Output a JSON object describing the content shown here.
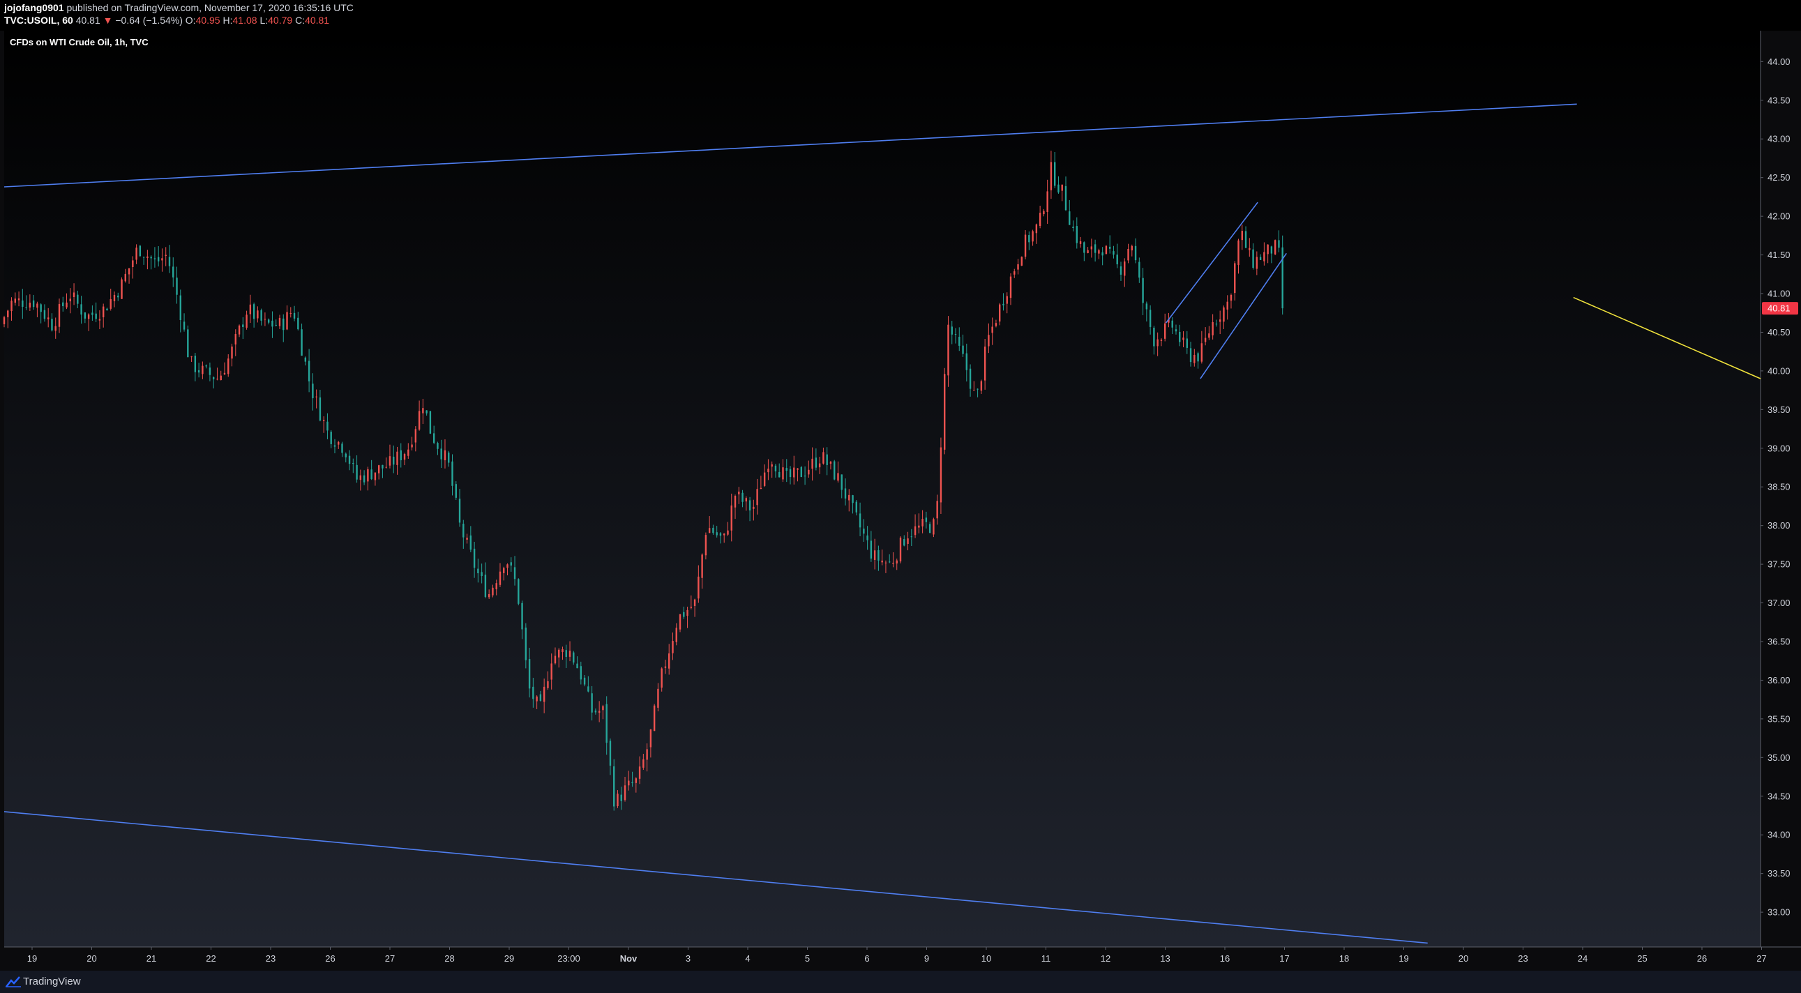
{
  "header": {
    "author": "jojofang0901",
    "published_text": " published on TradingView.com, November 17, 2020 16:35:16 UTC",
    "symbol": "TVC:USOIL, 60",
    "last": "40.81",
    "change_arrow": "▼",
    "change": "−0.64 (−1.54%)",
    "o_label": "O:",
    "o_value": "40.95",
    "h_label": "H:",
    "h_value": "41.08",
    "l_label": "L:",
    "l_value": "40.79",
    "c_label": "C:",
    "c_value": "40.81"
  },
  "footer": {
    "brand": "TradingView"
  },
  "colors": {
    "up": "#ef5350",
    "down": "#26a69a",
    "trendline": "#4f7ef0",
    "projection": "#f0e23c",
    "price_badge": "#f23645",
    "axis_text": "#d1d4dc"
  },
  "chart_data": {
    "type": "candlestick",
    "title": "CFDs on WTI Crude Oil, 1h, TVC",
    "y_ticks": [
      "44.00",
      "43.50",
      "43.00",
      "42.50",
      "42.00",
      "41.50",
      "41.00",
      "40.50",
      "40.00",
      "39.50",
      "39.00",
      "38.50",
      "38.00",
      "37.50",
      "37.00",
      "36.50",
      "36.00",
      "35.50",
      "35.00",
      "34.50",
      "34.00",
      "33.50",
      "33.00"
    ],
    "ylim": [
      32.55,
      44.4
    ],
    "x_ticks": [
      "19",
      "20",
      "21",
      "22",
      "23",
      "26",
      "27",
      "28",
      "29",
      "23:00",
      "Nov",
      "3",
      "4",
      "5",
      "6",
      "9",
      "10",
      "11",
      "12",
      "13",
      "16",
      "17",
      "18",
      "19",
      "20",
      "23",
      "24",
      "25",
      "26",
      "27"
    ],
    "bold_x_ticks": [
      "Nov"
    ],
    "bar_range": [
      0,
      1114
    ],
    "xlim": [
      0,
      1530
    ],
    "last_price": "40.81",
    "last_value": 40.81,
    "price_path": [
      [
        0,
        40.6
      ],
      [
        10,
        40.9
      ],
      [
        30,
        40.9
      ],
      [
        45,
        40.6
      ],
      [
        60,
        41.0
      ],
      [
        75,
        40.7
      ],
      [
        90,
        40.8
      ],
      [
        105,
        41.1
      ],
      [
        120,
        41.6
      ],
      [
        135,
        41.4
      ],
      [
        145,
        41.5
      ],
      [
        155,
        40.9
      ],
      [
        165,
        40.1
      ],
      [
        175,
        40.0
      ],
      [
        190,
        39.9
      ],
      [
        200,
        40.2
      ],
      [
        215,
        40.8
      ],
      [
        230,
        40.6
      ],
      [
        245,
        40.6
      ],
      [
        255,
        40.8
      ],
      [
        270,
        39.8
      ],
      [
        285,
        39.2
      ],
      [
        300,
        39.0
      ],
      [
        310,
        38.6
      ],
      [
        325,
        38.7
      ],
      [
        340,
        38.8
      ],
      [
        355,
        39.0
      ],
      [
        368,
        39.6
      ],
      [
        375,
        39.2
      ],
      [
        390,
        38.8
      ],
      [
        400,
        38.0
      ],
      [
        415,
        37.4
      ],
      [
        425,
        37.1
      ],
      [
        440,
        37.6
      ],
      [
        450,
        37.2
      ],
      [
        460,
        35.9
      ],
      [
        470,
        35.6
      ],
      [
        480,
        36.3
      ],
      [
        495,
        36.4
      ],
      [
        505,
        36.1
      ],
      [
        515,
        35.6
      ],
      [
        525,
        35.6
      ],
      [
        535,
        34.4
      ],
      [
        545,
        34.6
      ],
      [
        555,
        34.7
      ],
      [
        565,
        35.2
      ],
      [
        575,
        36.0
      ],
      [
        590,
        36.8
      ],
      [
        605,
        37.0
      ],
      [
        615,
        38.0
      ],
      [
        630,
        37.8
      ],
      [
        640,
        38.4
      ],
      [
        655,
        38.2
      ],
      [
        670,
        38.9
      ],
      [
        685,
        38.6
      ],
      [
        700,
        38.7
      ],
      [
        715,
        38.9
      ],
      [
        730,
        38.6
      ],
      [
        745,
        38.1
      ],
      [
        760,
        37.6
      ],
      [
        775,
        37.5
      ],
      [
        790,
        37.9
      ],
      [
        805,
        38.0
      ],
      [
        815,
        38.0
      ],
      [
        825,
        40.6
      ],
      [
        840,
        40.1
      ],
      [
        850,
        39.6
      ],
      [
        860,
        40.4
      ],
      [
        875,
        41.0
      ],
      [
        890,
        41.6
      ],
      [
        905,
        41.9
      ],
      [
        915,
        42.6
      ],
      [
        925,
        42.3
      ],
      [
        935,
        41.8
      ],
      [
        945,
        41.5
      ],
      [
        960,
        41.6
      ],
      [
        975,
        41.3
      ],
      [
        985,
        41.7
      ],
      [
        995,
        40.9
      ],
      [
        1005,
        40.4
      ],
      [
        1020,
        40.6
      ],
      [
        1035,
        40.2
      ],
      [
        1045,
        40.2
      ],
      [
        1055,
        40.6
      ],
      [
        1070,
        40.9
      ],
      [
        1080,
        41.8
      ],
      [
        1090,
        41.4
      ],
      [
        1100,
        41.5
      ],
      [
        1110,
        41.6
      ],
      [
        1120,
        41.3
      ],
      [
        1130,
        41.1
      ],
      [
        1138,
        40.81
      ]
    ],
    "trendlines": [
      {
        "name": "upper channel",
        "color": "trendline",
        "points": [
          [
            0,
            42.38
          ],
          [
            1370,
            43.45
          ]
        ]
      },
      {
        "name": "lower channel",
        "color": "trendline",
        "points": [
          [
            0,
            34.3
          ],
          [
            1240,
            32.6
          ]
        ]
      },
      {
        "name": "flag upper",
        "color": "trendline",
        "points": [
          [
            1012,
            40.62
          ],
          [
            1092,
            42.18
          ]
        ]
      },
      {
        "name": "flag lower",
        "color": "trendline",
        "points": [
          [
            1042,
            39.9
          ],
          [
            1117,
            41.52
          ]
        ]
      },
      {
        "name": "projection",
        "color": "projection",
        "points": [
          [
            1367,
            40.95
          ],
          [
            1530,
            39.9
          ]
        ]
      }
    ]
  }
}
